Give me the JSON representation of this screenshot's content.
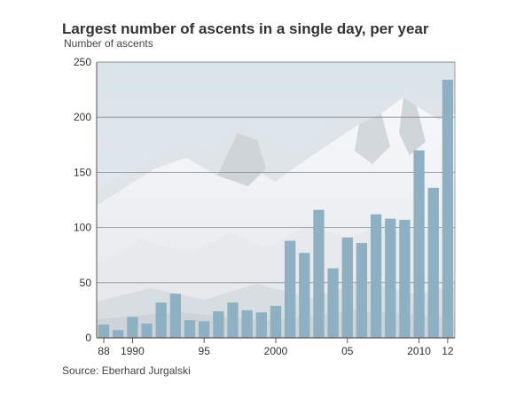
{
  "chart_data": {
    "type": "bar",
    "title": "Largest number of ascents in a single day, per year",
    "ylabel": "Number of ascents",
    "xlabel": "",
    "source": "Source: Eberhard Jurgalski",
    "ylim": [
      0,
      250
    ],
    "yticks": [
      0,
      50,
      100,
      150,
      200,
      250
    ],
    "grid": true,
    "categories": [
      1988,
      1989,
      1990,
      1991,
      1992,
      1993,
      1994,
      1995,
      1996,
      1997,
      1998,
      1999,
      2000,
      2001,
      2002,
      2003,
      2004,
      2005,
      2006,
      2007,
      2008,
      2009,
      2010,
      2011,
      2012
    ],
    "values": [
      12,
      7,
      19,
      13,
      32,
      40,
      16,
      15,
      24,
      32,
      25,
      23,
      29,
      88,
      77,
      116,
      63,
      91,
      86,
      112,
      108,
      107,
      170,
      136,
      234
    ],
    "xtick_labels": [
      {
        "category": 1988,
        "label": "88"
      },
      {
        "category": 1990,
        "label": "1990"
      },
      {
        "category": 1995,
        "label": "95"
      },
      {
        "category": 2000,
        "label": "2000"
      },
      {
        "category": 2005,
        "label": "05"
      },
      {
        "category": 2010,
        "label": "2010"
      },
      {
        "category": 2012,
        "label": "12"
      }
    ],
    "colors": {
      "bar": "#8fb0c2",
      "grid": "#8a8a8a",
      "axis": "#555555",
      "sky": "#cfdbe3",
      "snow": "#f4f5f6",
      "rock": "#c9cdd1"
    },
    "background": "mountain-photo"
  }
}
